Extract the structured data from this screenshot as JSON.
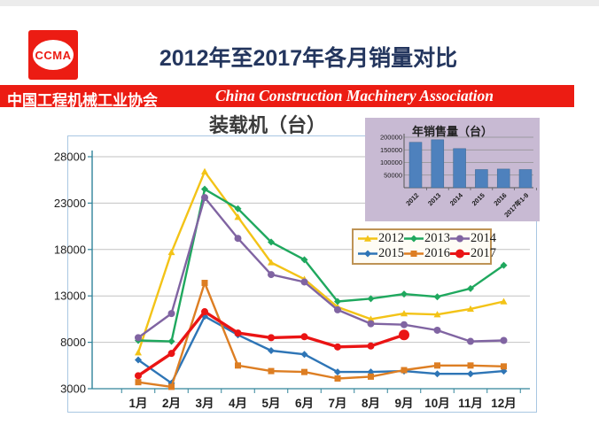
{
  "header": {
    "logo_text": "CCMA",
    "title": "2012年至2017年各月销量对比",
    "banner_cn": "中国工程机械工业协会",
    "banner_en": "China Construction Machinery Association"
  },
  "colors": {
    "banner_red": "#EC1C13",
    "title_navy": "#24365E",
    "chart_border": "#A9C7E2",
    "axis_teal": "#31849B",
    "grid_gray": "#C2C2C2",
    "legend_border": "#BE9355",
    "inset_bg": "#C8BAD3",
    "inset_bar_blue": "#4E81BD"
  },
  "chart_data": [
    {
      "type": "line",
      "title": "装载机（台）",
      "categories": [
        "1月",
        "2月",
        "3月",
        "4月",
        "5月",
        "6月",
        "7月",
        "8月",
        "9月",
        "10月",
        "11月",
        "12月"
      ],
      "y_ticks": [
        3000,
        8000,
        13000,
        18000,
        23000,
        28000
      ],
      "ylim": [
        3000,
        28500
      ],
      "grid": true,
      "legend_position": "inside-top-right",
      "series": [
        {
          "name": "2012",
          "color": "#F3C317",
          "marker": "triangle",
          "values": [
            6900,
            17700,
            26400,
            21500,
            16600,
            14800,
            11800,
            10500,
            11100,
            11000,
            11600,
            12400
          ]
        },
        {
          "name": "2013",
          "color": "#1FA85E",
          "marker": "diamond",
          "values": [
            8200,
            8100,
            24500,
            22400,
            18800,
            16900,
            12400,
            12700,
            13200,
            12900,
            13800,
            16300
          ]
        },
        {
          "name": "2014",
          "color": "#8064A2",
          "marker": "circle",
          "values": [
            8500,
            11100,
            23600,
            19200,
            15300,
            14500,
            11500,
            10000,
            9900,
            9300,
            8100,
            8200
          ]
        },
        {
          "name": "2015",
          "color": "#2E75B6",
          "marker": "diamond",
          "values": [
            6100,
            3600,
            10800,
            8800,
            7100,
            6700,
            4800,
            4800,
            4900,
            4600,
            4600,
            4900
          ]
        },
        {
          "name": "2016",
          "color": "#DD7E23",
          "marker": "square",
          "values": [
            3700,
            3200,
            14400,
            5500,
            4900,
            4800,
            4100,
            4300,
            5000,
            5500,
            5500,
            5400
          ]
        },
        {
          "name": "2017",
          "color": "#EA1414",
          "marker": "circle",
          "emphasis_last": true,
          "values": [
            4400,
            6800,
            11300,
            9000,
            8500,
            8600,
            7500,
            7600,
            8800
          ]
        }
      ]
    },
    {
      "type": "bar",
      "title": "年销售量（台）",
      "categories": [
        "2012",
        "2013",
        "2014",
        "2015",
        "2016",
        "2017年1-9"
      ],
      "values": [
        180000,
        190000,
        155000,
        72000,
        74000,
        72000
      ],
      "y_ticks": [
        50000,
        100000,
        150000,
        200000
      ],
      "ylim": [
        0,
        210000
      ],
      "xlabel": "",
      "ylabel": ""
    }
  ]
}
